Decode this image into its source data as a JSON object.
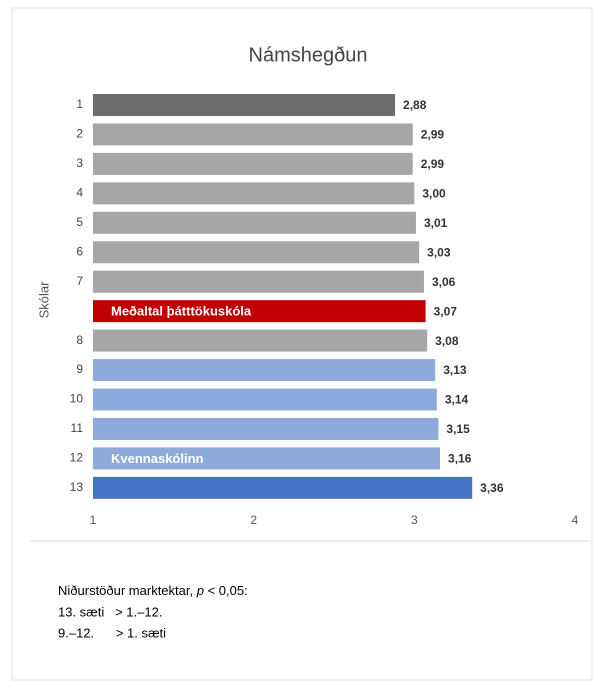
{
  "chart_data": {
    "type": "hbar",
    "title": "Námshegðun",
    "y_label": "Skólar",
    "categories": [
      "1",
      "2",
      "3",
      "4",
      "5",
      "6",
      "7",
      null,
      "8",
      "9",
      "10",
      "11",
      "12",
      "13"
    ],
    "values": [
      2.88,
      2.99,
      2.99,
      3.0,
      3.01,
      3.03,
      3.06,
      3.07,
      3.08,
      3.13,
      3.14,
      3.15,
      3.16,
      3.36
    ],
    "value_labels": [
      "2,88",
      "2,99",
      "2,99",
      "3,00",
      "3,01",
      "3,03",
      "3,06",
      "3,07",
      "3,08",
      "3,13",
      "3,14",
      "3,15",
      "3,16",
      "3,36"
    ],
    "bar_labels": [
      null,
      null,
      null,
      null,
      null,
      null,
      null,
      "Meðaltal þátttökuskóla",
      null,
      null,
      null,
      null,
      "Kvennaskólinn",
      null
    ],
    "colors": [
      "#6d6d6d",
      "#a6a6a6",
      "#a6a6a6",
      "#a6a6a6",
      "#a6a6a6",
      "#a6a6a6",
      "#a6a6a6",
      "#c00000",
      "#a6a6a6",
      "#8eaadb",
      "#8eaadb",
      "#8eaadb",
      "#8eaadb",
      "#4472c4"
    ],
    "xlim": [
      1,
      4
    ],
    "xticks": [
      1,
      2,
      3,
      4
    ],
    "footnote_parts": [
      "Niðurstöður marktektar, ",
      "p",
      " < 0,05:"
    ],
    "notes": [
      "13. sæti   > 1.–12.",
      "9.–12.      > 1. sæti"
    ]
  }
}
